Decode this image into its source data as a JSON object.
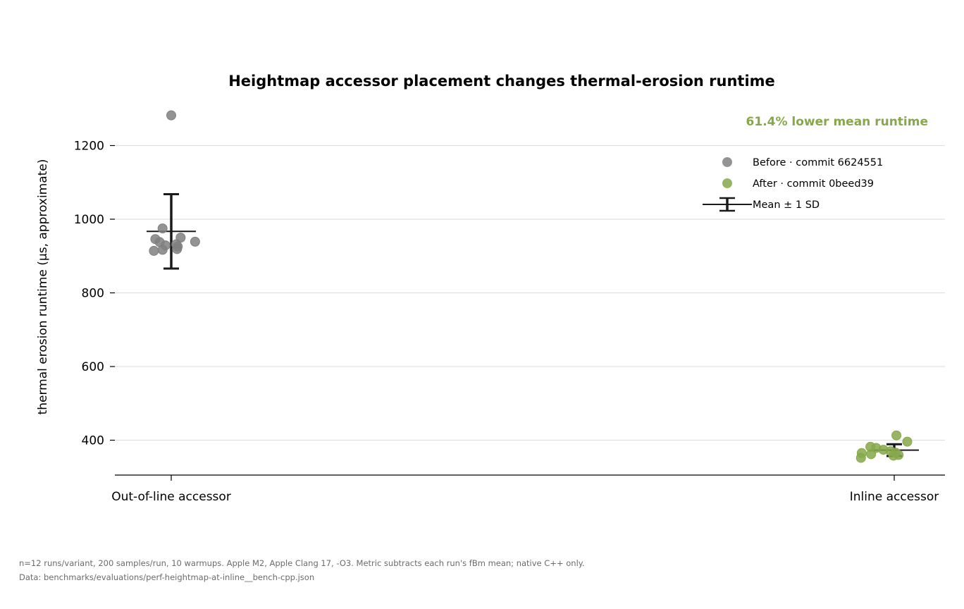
{
  "chart_data": {
    "type": "scatter",
    "title": "Heightmap accessor placement changes thermal-erosion runtime",
    "ylabel": "thermal erosion runtime (µs, approximate)",
    "xlabel": "",
    "categories": [
      "Out-of-line accessor",
      "Inline accessor"
    ],
    "ylim": [
      305,
      1330
    ],
    "yticks": [
      400,
      600,
      800,
      1000,
      1200
    ],
    "grid": "horizontal",
    "legend_position": "top-right",
    "annotation": "61.4% lower mean runtime",
    "series": [
      {
        "name": "Before · commit 6624551",
        "category": "Out-of-line accessor",
        "color": "#808080",
        "mean": 967,
        "sd": 101,
        "points": [
          {
            "offset": 0.0,
            "value": 1282
          },
          {
            "offset": -0.012,
            "value": 975
          },
          {
            "offset": 0.013,
            "value": 950
          },
          {
            "offset": -0.022,
            "value": 946
          },
          {
            "offset": 0.033,
            "value": 939
          },
          {
            "offset": -0.016,
            "value": 938
          },
          {
            "offset": 0.007,
            "value": 932
          },
          {
            "offset": -0.008,
            "value": 929
          },
          {
            "offset": 0.009,
            "value": 926
          },
          {
            "offset": 0.008,
            "value": 919
          },
          {
            "offset": -0.012,
            "value": 917
          },
          {
            "offset": -0.024,
            "value": 914
          }
        ]
      },
      {
        "name": "After · commit 0beed39",
        "category": "Inline accessor",
        "color": "#86a84a",
        "mean": 373,
        "sd": 16,
        "points": [
          {
            "offset": 0.003,
            "value": 413
          },
          {
            "offset": 0.018,
            "value": 396
          },
          {
            "offset": -0.033,
            "value": 382
          },
          {
            "offset": -0.025,
            "value": 379
          },
          {
            "offset": -0.015,
            "value": 374
          },
          {
            "offset": -0.005,
            "value": 370
          },
          {
            "offset": 0.002,
            "value": 366
          },
          {
            "offset": -0.045,
            "value": 365
          },
          {
            "offset": -0.032,
            "value": 362
          },
          {
            "offset": 0.006,
            "value": 360
          },
          {
            "offset": -0.001,
            "value": 358
          },
          {
            "offset": -0.046,
            "value": 352
          }
        ]
      }
    ],
    "legend": [
      {
        "label": "Before · commit 6624551",
        "marker": "circle",
        "color": "#808080"
      },
      {
        "label": "After · commit 0beed39",
        "marker": "circle",
        "color": "#86a84a"
      },
      {
        "label": "Mean ± 1 SD",
        "marker": "errorbar",
        "color": "#1a1a1a"
      }
    ]
  },
  "footnote": {
    "line1": "n=12 runs/variant, 200 samples/run, 10 warmups. Apple M2, Apple Clang 17, -O3. Metric subtracts each run's fBm mean; native C++ only.",
    "line2": "Data: benchmarks/evaluations/perf-heightmap-at-inline__bench-cpp.json"
  },
  "colors": {
    "accent": "#86a84a",
    "before": "#808080",
    "errorbar": "#1a1a1a",
    "grid": "#e0e0e0"
  }
}
